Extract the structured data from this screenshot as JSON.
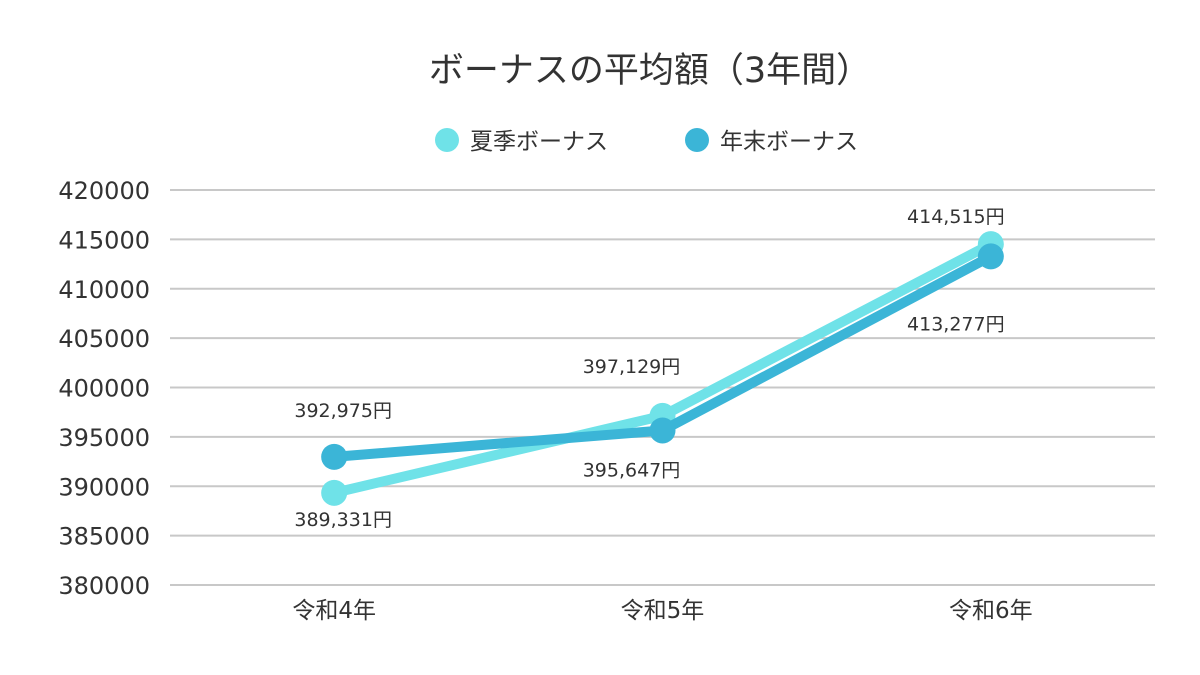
{
  "chart_data": {
    "type": "line",
    "title": "ボーナスの平均額（3年間）",
    "xlabel": "",
    "ylabel": "",
    "categories": [
      "令和4年",
      "令和5年",
      "令和6年"
    ],
    "ylim": [
      380000,
      420000
    ],
    "y_ticks": [
      380000,
      385000,
      390000,
      395000,
      400000,
      405000,
      410000,
      415000,
      420000
    ],
    "grid": true,
    "legend": "top",
    "series": [
      {
        "name": "夏季ボーナス",
        "values": [
          389331,
          397129,
          414515
        ],
        "labels": [
          "389,331円",
          "397,129円",
          "414,515円"
        ],
        "color": "#6fe2e8"
      },
      {
        "name": "年末ボーナス",
        "values": [
          392975,
          395647,
          413277
        ],
        "labels": [
          "392,975円",
          "395,647円",
          "413,277円"
        ],
        "color": "#3bb5d7"
      }
    ]
  }
}
